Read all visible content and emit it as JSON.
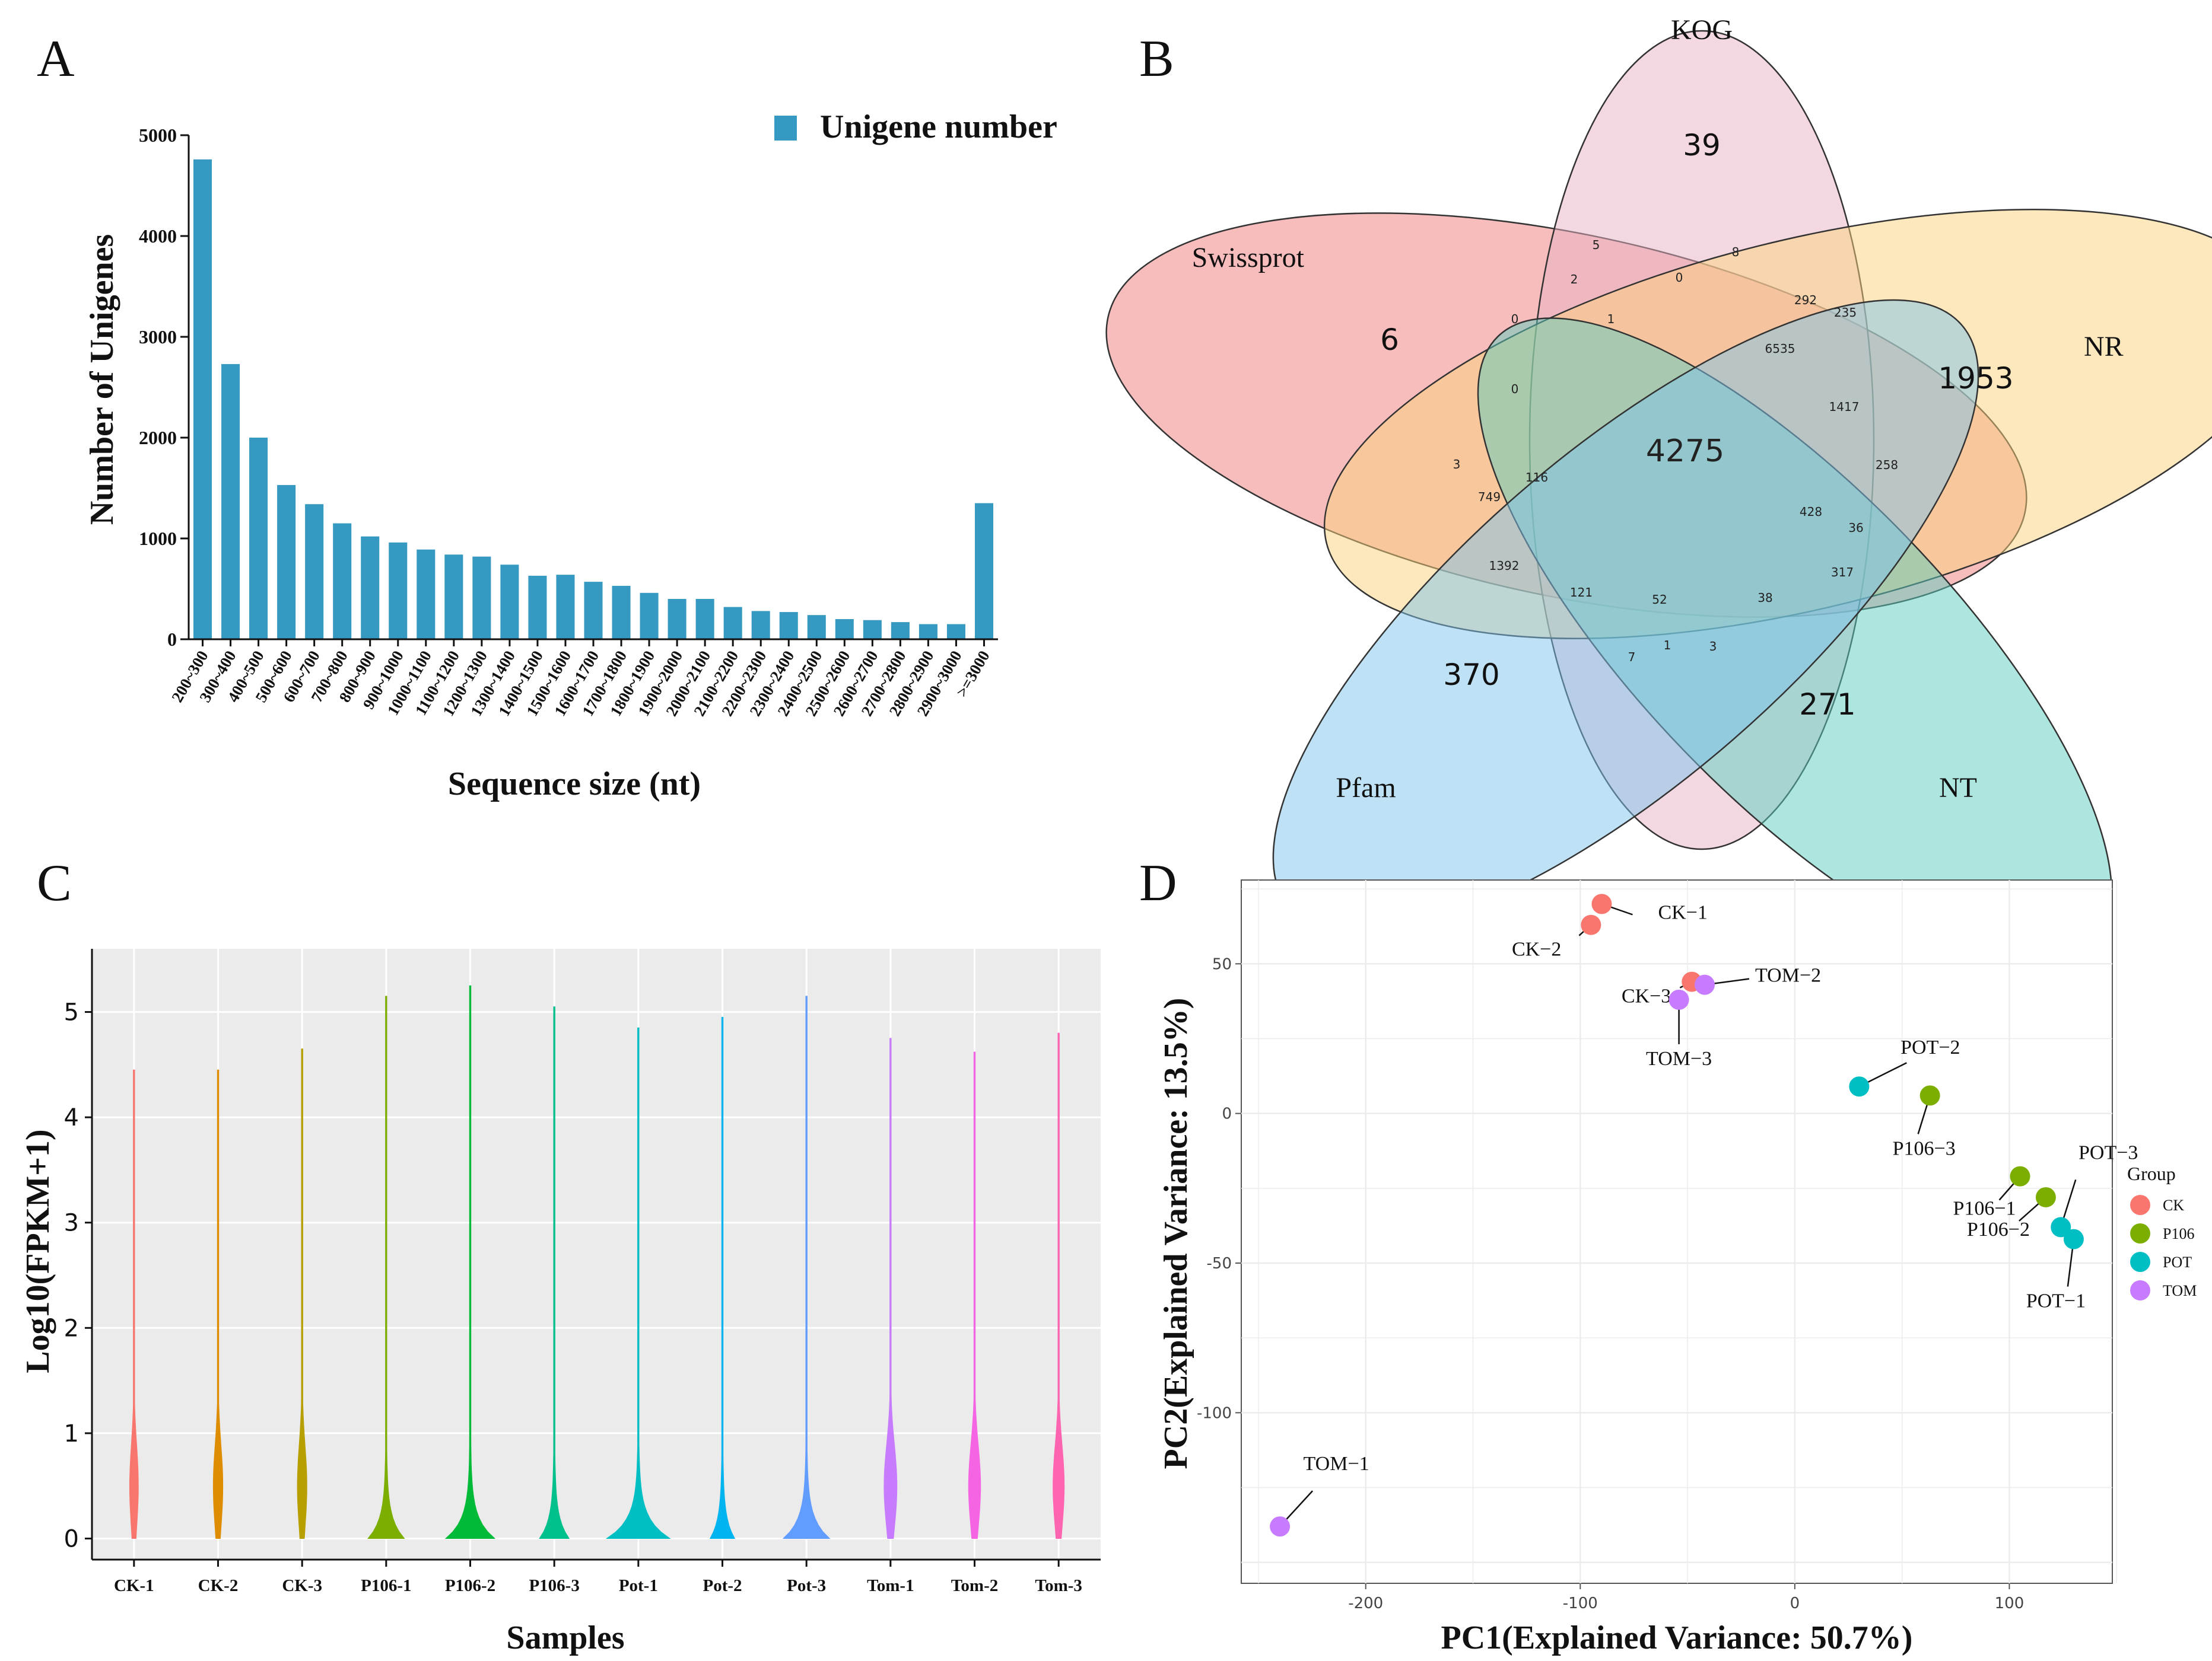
{
  "chart_data": [
    {
      "panel": "A",
      "type": "bar",
      "title": "",
      "legend": {
        "label": "Unigene number",
        "position": "top-right"
      },
      "xlabel": "Sequence size (nt)",
      "ylabel": "Number of Unigenes",
      "ylim": [
        0,
        5000
      ],
      "yticks": [
        0,
        1000,
        2000,
        3000,
        4000,
        5000
      ],
      "color": "#3599c1",
      "categories": [
        "200~300",
        "300~400",
        "400~500",
        "500~600",
        "600~700",
        "700~800",
        "800~900",
        "900~1000",
        "1000~1100",
        "1100~1200",
        "1200~1300",
        "1300~1400",
        "1400~1500",
        "1500~1600",
        "1600~1700",
        "1700~1800",
        "1800~1900",
        "1900~2000",
        "2000~2100",
        "2100~2200",
        "2200~2300",
        "2300~2400",
        "2400~2500",
        "2500~2600",
        "2600~2700",
        "2700~2800",
        "2800~2900",
        "2900~3000",
        ">=3000"
      ],
      "values": [
        4760,
        2730,
        2000,
        1530,
        1340,
        1150,
        1020,
        960,
        890,
        840,
        820,
        740,
        630,
        640,
        570,
        530,
        460,
        400,
        400,
        320,
        280,
        270,
        240,
        200,
        190,
        170,
        150,
        150,
        1350
      ]
    },
    {
      "panel": "B",
      "type": "venn",
      "sets": [
        {
          "name": "KOG",
          "color": "#e7b2c4",
          "unique": "39"
        },
        {
          "name": "NR",
          "color": "#fbd27c",
          "unique": "1953"
        },
        {
          "name": "NT",
          "color": "#5ccdbf",
          "unique": "271"
        },
        {
          "name": "Pfam",
          "color": "#7ec3ec",
          "unique": "370"
        },
        {
          "name": "Swissprot",
          "color": "#f07b7b",
          "unique": "6"
        }
      ],
      "intersections": [
        "4275",
        "6535",
        "1417",
        "258",
        "428",
        "36",
        "317",
        "38",
        "52",
        "3",
        "1",
        "7",
        "121",
        "1392",
        "749",
        "116",
        "3",
        "0",
        "0",
        "1",
        "2",
        "5",
        "0",
        "8",
        "292",
        "235"
      ]
    },
    {
      "panel": "C",
      "type": "violin",
      "xlabel": "Samples",
      "ylabel": "Log10(FPKM+1)",
      "ylim": [
        -0.2,
        5.6
      ],
      "yticks": [
        0,
        1,
        2,
        3,
        4,
        5
      ],
      "categories": [
        "CK-1",
        "CK-2",
        "CK-3",
        "P106-1",
        "P106-2",
        "P106-3",
        "Pot-1",
        "Pot-2",
        "Pot-3",
        "Tom-1",
        "Tom-2",
        "Tom-3"
      ],
      "colors": [
        "#f8766d",
        "#de8c00",
        "#b79f00",
        "#7cae00",
        "#00ba38",
        "#00c08b",
        "#00bfc4",
        "#00b4f0",
        "#619cff",
        "#c77cff",
        "#f564e3",
        "#ff64b0"
      ],
      "max": [
        4.45,
        4.45,
        4.65,
        5.15,
        5.25,
        5.05,
        4.85,
        4.95,
        5.15,
        4.75,
        4.62,
        4.8
      ],
      "peak_width": [
        0.1,
        0.11,
        0.11,
        0.4,
        0.55,
        0.32,
        0.72,
        0.26,
        0.52,
        0.15,
        0.14,
        0.13
      ]
    },
    {
      "panel": "D",
      "type": "scatter",
      "xlabel": "PC1(Explained Variance: 50.7%)",
      "ylabel": "PC2(Explained Variance: 13.5%)",
      "xlim": [
        -258,
        148
      ],
      "ylim": [
        -157,
        78
      ],
      "xticks": [
        -200,
        -100,
        0,
        100
      ],
      "yticks": [
        -100,
        -50,
        0,
        50
      ],
      "grid": true,
      "legend": {
        "title": "Group",
        "position": "right",
        "items": [
          {
            "name": "CK",
            "color": "#f8766d"
          },
          {
            "name": "P106",
            "color": "#7cae00"
          },
          {
            "name": "POT",
            "color": "#00bfc4"
          },
          {
            "name": "TOM",
            "color": "#c77cff"
          }
        ]
      },
      "points": [
        {
          "label": "CK−1",
          "group": "CK",
          "x": -90,
          "y": 70
        },
        {
          "label": "CK−2",
          "group": "CK",
          "x": -95,
          "y": 63
        },
        {
          "label": "CK−3",
          "group": "CK",
          "x": -48,
          "y": 44
        },
        {
          "label": "TOM−2",
          "group": "TOM",
          "x": -42,
          "y": 43
        },
        {
          "label": "TOM−3",
          "group": "TOM",
          "x": -54,
          "y": 38
        },
        {
          "label": "TOM−1",
          "group": "TOM",
          "x": -240,
          "y": -138
        },
        {
          "label": "POT−2",
          "group": "POT",
          "x": 30,
          "y": 9
        },
        {
          "label": "P106−3",
          "group": "P106",
          "x": 63,
          "y": 6
        },
        {
          "label": "P106−1",
          "group": "P106",
          "x": 105,
          "y": -21
        },
        {
          "label": "P106−2",
          "group": "P106",
          "x": 117,
          "y": -28
        },
        {
          "label": "POT−3",
          "group": "POT",
          "x": 124,
          "y": -38
        },
        {
          "label": "POT−1",
          "group": "POT",
          "x": 130,
          "y": -42
        }
      ]
    }
  ]
}
